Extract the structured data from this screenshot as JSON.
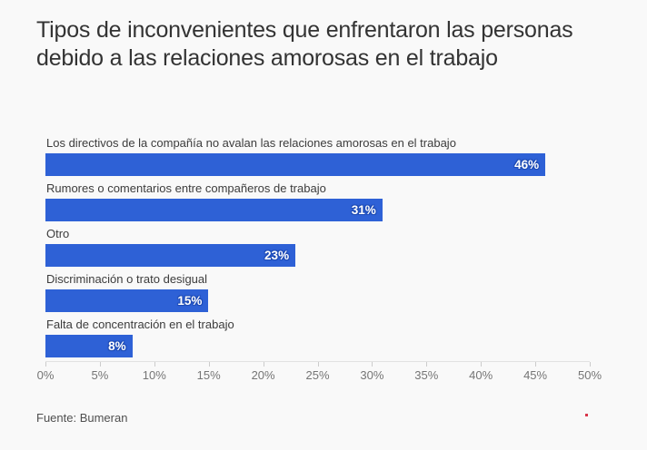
{
  "chart_data": {
    "type": "bar",
    "orientation": "horizontal",
    "title": "Tipos de inconvenientes que enfrentaron las personas debido a las relaciones amorosas en el trabajo",
    "categories": [
      "Los directivos de la compañía no avalan las relaciones amorosas en el trabajo",
      "Rumores o comentarios entre compañeros de trabajo",
      "Otro",
      "Discriminación o trato desigual",
      "Falta de concentración en el trabajo"
    ],
    "values": [
      46,
      31,
      23,
      15,
      8
    ],
    "value_suffix": "%",
    "xlabel": "",
    "ylabel": "",
    "xlim": [
      0,
      50
    ],
    "x_tick_labels": [
      "0%",
      "5%",
      "10%",
      "15%",
      "20%",
      "25%",
      "30%",
      "35%",
      "40%",
      "45%",
      "50%"
    ],
    "grid": false,
    "legend": "none",
    "bar_color": "#2e61d6",
    "value_label_color": "#ffffff",
    "value_label_halo_color": "#1e4bb5"
  },
  "source": {
    "label": "Fuente: Bumeran"
  }
}
